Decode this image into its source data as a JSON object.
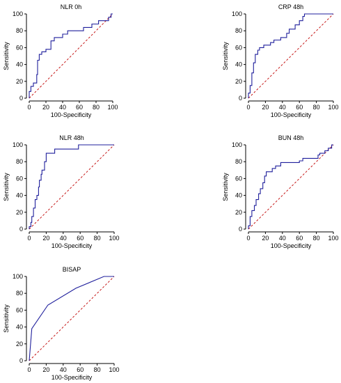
{
  "figure": {
    "charts": [
      {
        "type": "line",
        "title": "NLR 0h",
        "xlabel": "100-Specificity",
        "ylabel": "Sensitivity",
        "xlim": [
          0,
          100
        ],
        "ylim": [
          0,
          100
        ],
        "xticks": [
          0,
          20,
          40,
          60,
          80,
          100
        ],
        "yticks": [
          0,
          20,
          40,
          60,
          80,
          100
        ],
        "series": [
          {
            "values": [
              [
                0,
                0
              ],
              [
                0,
                8
              ],
              [
                2,
                8
              ],
              [
                2,
                14
              ],
              [
                5,
                14
              ],
              [
                5,
                18
              ],
              [
                9,
                18
              ],
              [
                9,
                28
              ],
              [
                10,
                28
              ],
              [
                10,
                45
              ],
              [
                12,
                45
              ],
              [
                12,
                52
              ],
              [
                15,
                52
              ],
              [
                15,
                55
              ],
              [
                20,
                55
              ],
              [
                20,
                58
              ],
              [
                26,
                58
              ],
              [
                26,
                68
              ],
              [
                30,
                68
              ],
              [
                30,
                72
              ],
              [
                40,
                72
              ],
              [
                40,
                76
              ],
              [
                46,
                76
              ],
              [
                46,
                80
              ],
              [
                65,
                80
              ],
              [
                65,
                84
              ],
              [
                75,
                84
              ],
              [
                75,
                88
              ],
              [
                83,
                88
              ],
              [
                83,
                92
              ],
              [
                95,
                92
              ],
              [
                95,
                96
              ],
              [
                98,
                96
              ],
              [
                98,
                100
              ],
              [
                100,
                100
              ]
            ]
          }
        ],
        "reference": [
          [
            0,
            0
          ],
          [
            100,
            100
          ]
        ]
      },
      {
        "type": "line",
        "title": "CRP 48h",
        "xlabel": "100-Specificity",
        "ylabel": "Sensitivity",
        "xlim": [
          0,
          100
        ],
        "ylim": [
          0,
          100
        ],
        "xticks": [
          0,
          20,
          40,
          60,
          80,
          100
        ],
        "yticks": [
          0,
          20,
          40,
          60,
          80,
          100
        ],
        "series": [
          {
            "values": [
              [
                0,
                0
              ],
              [
                0,
                6
              ],
              [
                2,
                6
              ],
              [
                2,
                15
              ],
              [
                4,
                15
              ],
              [
                4,
                30
              ],
              [
                6,
                30
              ],
              [
                6,
                42
              ],
              [
                8,
                42
              ],
              [
                8,
                52
              ],
              [
                11,
                52
              ],
              [
                11,
                57
              ],
              [
                13,
                57
              ],
              [
                13,
                60
              ],
              [
                18,
                60
              ],
              [
                18,
                63
              ],
              [
                26,
                63
              ],
              [
                26,
                66
              ],
              [
                30,
                66
              ],
              [
                30,
                69
              ],
              [
                38,
                69
              ],
              [
                38,
                72
              ],
              [
                45,
                72
              ],
              [
                45,
                77
              ],
              [
                48,
                77
              ],
              [
                48,
                82
              ],
              [
                55,
                82
              ],
              [
                55,
                87
              ],
              [
                60,
                87
              ],
              [
                60,
                92
              ],
              [
                64,
                92
              ],
              [
                64,
                97
              ],
              [
                66,
                97
              ],
              [
                66,
                100
              ],
              [
                100,
                100
              ]
            ]
          }
        ],
        "reference": [
          [
            0,
            0
          ],
          [
            100,
            100
          ]
        ]
      },
      {
        "type": "line",
        "title": "NLR 48h",
        "xlabel": "100-Specificity",
        "ylabel": "Sensitivity",
        "xlim": [
          0,
          100
        ],
        "ylim": [
          0,
          100
        ],
        "xticks": [
          0,
          20,
          40,
          60,
          80,
          100
        ],
        "yticks": [
          0,
          20,
          40,
          60,
          80,
          100
        ],
        "series": [
          {
            "values": [
              [
                0,
                0
              ],
              [
                0,
                3
              ],
              [
                2,
                3
              ],
              [
                2,
                8
              ],
              [
                3,
                8
              ],
              [
                3,
                15
              ],
              [
                5,
                15
              ],
              [
                5,
                25
              ],
              [
                7,
                25
              ],
              [
                7,
                35
              ],
              [
                9,
                35
              ],
              [
                9,
                40
              ],
              [
                11,
                40
              ],
              [
                11,
                50
              ],
              [
                12,
                50
              ],
              [
                12,
                58
              ],
              [
                14,
                58
              ],
              [
                14,
                65
              ],
              [
                15,
                65
              ],
              [
                15,
                70
              ],
              [
                18,
                70
              ],
              [
                18,
                80
              ],
              [
                20,
                80
              ],
              [
                20,
                90
              ],
              [
                30,
                90
              ],
              [
                30,
                95
              ],
              [
                58,
                95
              ],
              [
                58,
                100
              ],
              [
                100,
                100
              ]
            ]
          }
        ],
        "reference": [
          [
            0,
            0
          ],
          [
            100,
            100
          ]
        ]
      },
      {
        "type": "line",
        "title": "BUN 48h",
        "xlabel": "100-Specificity",
        "ylabel": "Sensitivity",
        "xlim": [
          0,
          100
        ],
        "ylim": [
          0,
          100
        ],
        "xticks": [
          0,
          20,
          40,
          60,
          80,
          100
        ],
        "yticks": [
          0,
          20,
          40,
          60,
          80,
          100
        ],
        "series": [
          {
            "values": [
              [
                0,
                0
              ],
              [
                0,
                4
              ],
              [
                2,
                4
              ],
              [
                2,
                15
              ],
              [
                4,
                15
              ],
              [
                4,
                22
              ],
              [
                7,
                22
              ],
              [
                7,
                28
              ],
              [
                9,
                28
              ],
              [
                9,
                35
              ],
              [
                12,
                35
              ],
              [
                12,
                42
              ],
              [
                14,
                42
              ],
              [
                14,
                48
              ],
              [
                17,
                48
              ],
              [
                17,
                55
              ],
              [
                19,
                55
              ],
              [
                19,
                63
              ],
              [
                21,
                63
              ],
              [
                21,
                68
              ],
              [
                28,
                68
              ],
              [
                28,
                72
              ],
              [
                32,
                72
              ],
              [
                32,
                75
              ],
              [
                38,
                75
              ],
              [
                38,
                79
              ],
              [
                60,
                79
              ],
              [
                60,
                81
              ],
              [
                64,
                81
              ],
              [
                64,
                84
              ],
              [
                82,
                84
              ],
              [
                82,
                88
              ],
              [
                84,
                88
              ],
              [
                84,
                90
              ],
              [
                90,
                90
              ],
              [
                90,
                93
              ],
              [
                94,
                93
              ],
              [
                94,
                96
              ],
              [
                98,
                96
              ],
              [
                98,
                100
              ],
              [
                100,
                100
              ]
            ]
          }
        ],
        "reference": [
          [
            0,
            0
          ],
          [
            100,
            100
          ]
        ]
      },
      {
        "type": "line",
        "title": "BISAP",
        "xlabel": "100-Specificity",
        "ylabel": "Sensitivity",
        "xlim": [
          0,
          100
        ],
        "ylim": [
          0,
          100
        ],
        "xticks": [
          0,
          20,
          40,
          60,
          80,
          100
        ],
        "yticks": [
          0,
          20,
          40,
          60,
          80,
          100
        ],
        "series": [
          {
            "values": [
              [
                0,
                0
              ],
              [
                3,
                38
              ],
              [
                22,
                66
              ],
              [
                55,
                86
              ],
              [
                88,
                100
              ],
              [
                100,
                100
              ]
            ]
          }
        ],
        "reference": [
          [
            0,
            0
          ],
          [
            100,
            100
          ]
        ]
      }
    ],
    "colors": {
      "roc": "#1f1f9c",
      "reference": "#c00000",
      "axes": "#000000"
    }
  }
}
